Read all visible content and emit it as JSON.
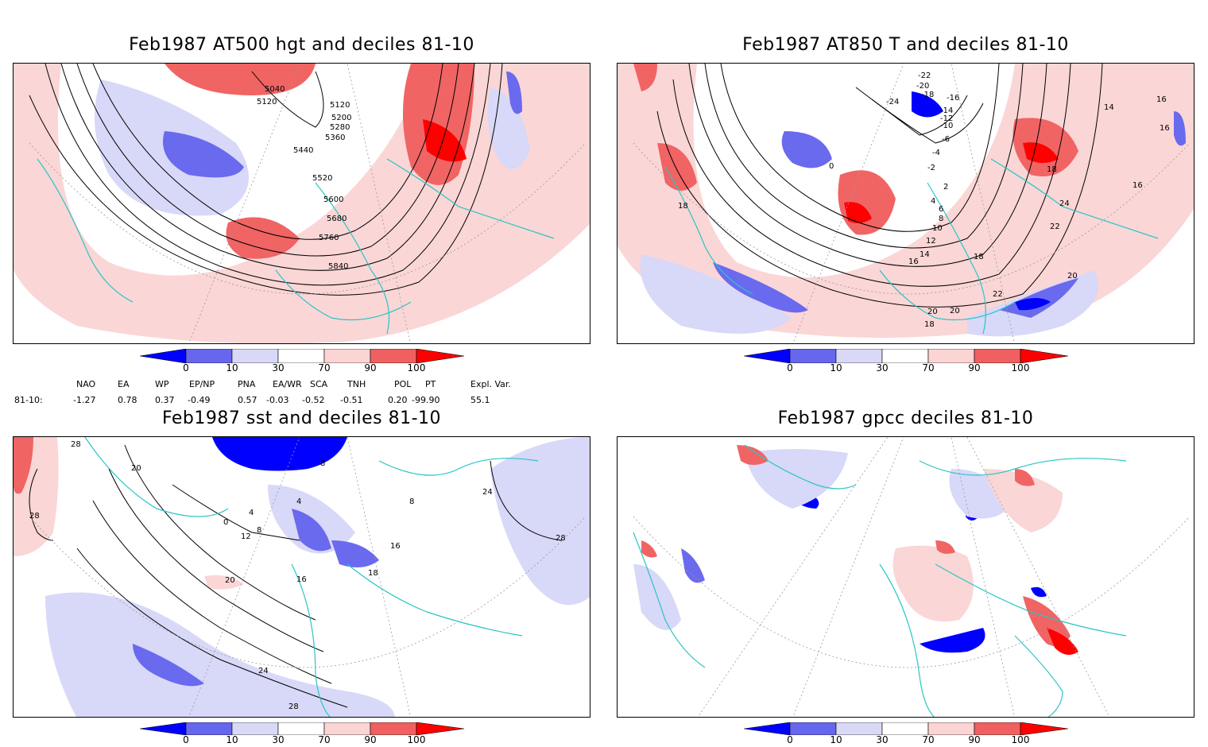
{
  "panels": [
    {
      "title": "Feb1987 AT500 hgt and deciles 81-10",
      "contour_labels": [
        "5040",
        "5120",
        "5120",
        "5200",
        "5280",
        "5360",
        "5440",
        "5520",
        "5600",
        "5680",
        "5760",
        "5840"
      ]
    },
    {
      "title": "Feb1987 AT850 T and deciles 81-10",
      "contour_labels": [
        "-22",
        "-20",
        "-24",
        "-18",
        "-16",
        "-14",
        "-12",
        "-10",
        "-6",
        "-4",
        "0",
        "-2",
        "2",
        "4",
        "6",
        "8",
        "10",
        "12",
        "14",
        "16",
        "18",
        "18",
        "20",
        "22",
        "24",
        "20",
        "22",
        "20",
        "18",
        "14",
        "16",
        "16",
        "16",
        "18"
      ]
    },
    {
      "title": "Feb1987 sst and deciles 81-10",
      "contour_labels": [
        "28",
        "20",
        "28",
        "0",
        "4",
        "8",
        "12",
        "8",
        "16",
        "4",
        "8",
        "16",
        "18",
        "20",
        "24",
        "24",
        "28",
        "28"
      ]
    },
    {
      "title": "Feb1987 gpcc deciles 81-10",
      "contour_labels": []
    }
  ],
  "colorbar": {
    "labels": [
      "0",
      "10",
      "30",
      "70",
      "90",
      "100"
    ],
    "colors": [
      "#0000ff",
      "#6666ee",
      "#d9d9f7",
      "#ffffff",
      "#fbd4d4",
      "#f06060",
      "#ff0000"
    ]
  },
  "indices": {
    "row_label": "81-10:",
    "headers": [
      "NAO",
      "EA",
      "WP",
      "EP/NP",
      "PNA",
      "EA/WR",
      "SCA",
      "TNH",
      "POL",
      "PT",
      "Expl. Var."
    ],
    "values": [
      "-1.27",
      "0.78",
      "0.37",
      "-0.49",
      "0.57",
      "-0.03",
      "-0.52",
      "-0.51",
      "0.20",
      "-99.90",
      "55.1"
    ]
  },
  "colors": {
    "coast": "#2ac5c5",
    "strong_neg": "#0000ff",
    "mid_neg": "#6a6aee",
    "weak_neg": "#d8d8f8",
    "weak_pos": "#fbd6d6",
    "mid_pos": "#f06464",
    "strong_pos": "#ff0000",
    "contour": "#000000",
    "grid": "#999999"
  }
}
